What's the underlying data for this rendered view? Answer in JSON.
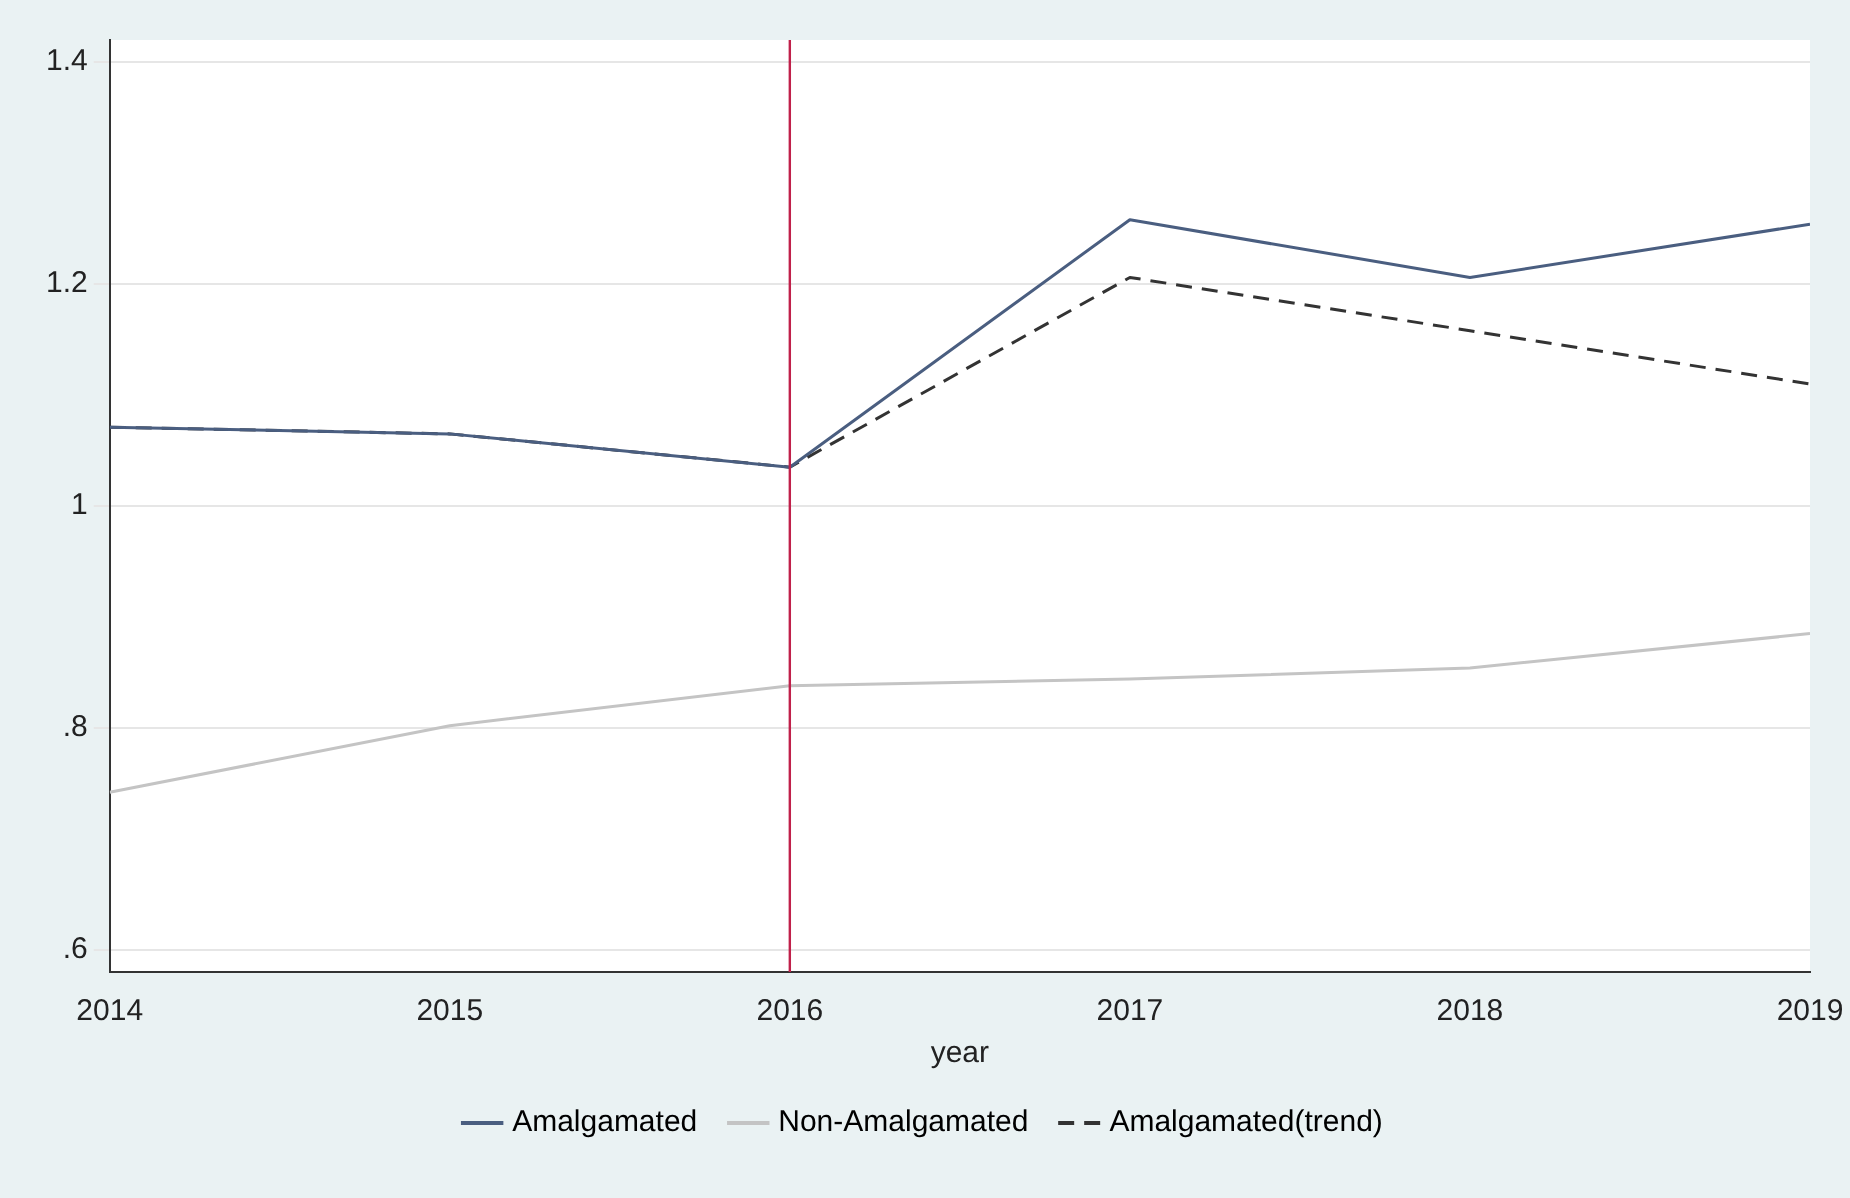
{
  "chart_data": {
    "type": "line",
    "xlabel": "year",
    "x": [
      2014,
      2015,
      2016,
      2017,
      2018,
      2019
    ],
    "series": [
      {
        "name": "Amalgamated",
        "color": "#4a5e80",
        "values": [
          1.071,
          1.065,
          1.035,
          1.258,
          1.206,
          1.254
        ]
      },
      {
        "name": "Non-Amalgamated",
        "color": "#c4c4c4",
        "values": [
          0.742,
          0.802,
          0.838,
          0.844,
          0.854,
          0.885
        ]
      },
      {
        "name": "Amalgamated(trend)",
        "color": "#333333",
        "line_style": "dashed",
        "values": [
          1.071,
          1.065,
          1.035,
          1.206,
          1.158,
          1.11
        ]
      }
    ],
    "xlim": [
      2014,
      2019
    ],
    "xticks": [
      2014,
      2015,
      2016,
      2017,
      2018,
      2019
    ],
    "ylim": [
      0.58,
      1.42
    ],
    "yticks": [
      {
        "value": 0.6,
        "label": ".6"
      },
      {
        "value": 0.8,
        "label": ".8"
      },
      {
        "value": 1,
        "label": "1"
      },
      {
        "value": 1.2,
        "label": "1.2"
      },
      {
        "value": 1.4,
        "label": "1.4"
      }
    ],
    "ref_lines": [
      {
        "axis": "x",
        "value": 2016,
        "color": "#c0204a"
      }
    ],
    "grid": "y",
    "legend": "bottom",
    "marker": "none"
  }
}
